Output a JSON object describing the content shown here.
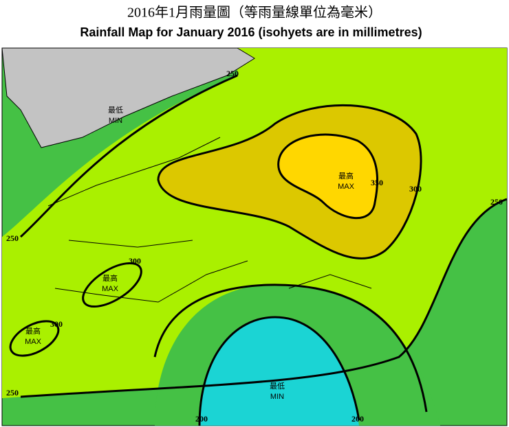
{
  "title_zh": "2016年1月雨量圖（等雨量線單位為毫米）",
  "title_en": "Rainfall Map for January 2016 (isohyets are in millimetres)",
  "isohyet_labels": [
    250,
    250,
    250,
    250,
    300,
    300,
    300,
    350,
    200,
    200
  ],
  "areas": [
    {
      "label_zh": "最低",
      "label_en": "MIN"
    },
    {
      "label_zh": "最高",
      "label_en": "MAX"
    },
    {
      "label_zh": "最高",
      "label_en": "MAX"
    },
    {
      "label_zh": "最高",
      "label_en": "MAX"
    },
    {
      "label_zh": "最低",
      "label_en": "MIN"
    }
  ]
}
